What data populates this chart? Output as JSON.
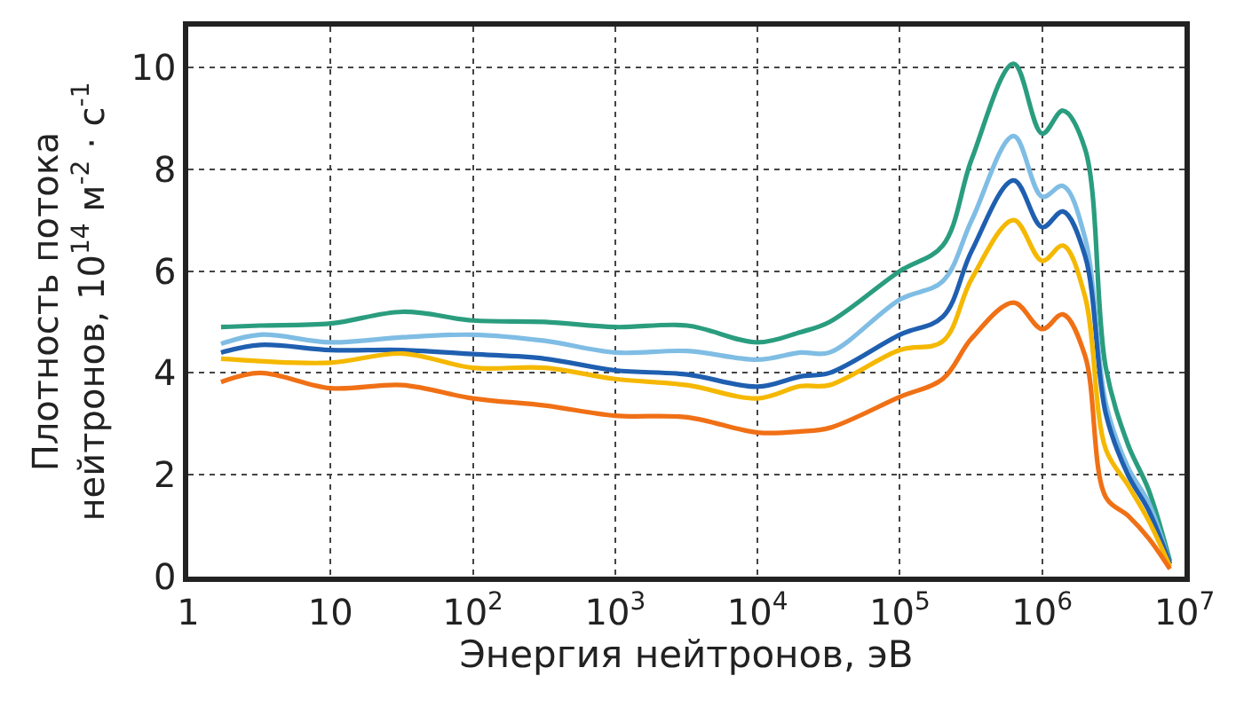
{
  "chart_data": {
    "type": "line",
    "xlabel": "Энергия нейтронов, эВ",
    "ylabel": "Плотность потока\nнейтронов, 10$^{14}$ м$^{-2}$ · с$^{-1}$",
    "x": [
      1.7,
      3.2,
      10,
      32,
      100,
      320,
      1000,
      3200,
      10000,
      20000,
      32000,
      100000,
      200000,
      320000,
      630000,
      1000000,
      1400000,
      2000000,
      2800000,
      4000000,
      5600000,
      7900000
    ],
    "series": [
      {
        "color": "#2a9d7f",
        "values": [
          4.9,
          4.93,
          4.97,
          5.2,
          5.03,
          5.0,
          4.9,
          4.93,
          4.6,
          4.8,
          5.0,
          6.0,
          6.5,
          8.2,
          10.07,
          8.7,
          9.15,
          8.4,
          4.1,
          2.6,
          1.7,
          0.3
        ]
      },
      {
        "color": "#7fbde4",
        "values": [
          4.57,
          4.75,
          4.6,
          4.7,
          4.75,
          4.63,
          4.4,
          4.43,
          4.26,
          4.4,
          4.4,
          5.44,
          5.8,
          7.0,
          8.65,
          7.46,
          7.67,
          6.65,
          3.4,
          2.15,
          1.45,
          0.25
        ]
      },
      {
        "color": "#1f5fb0",
        "values": [
          4.4,
          4.55,
          4.45,
          4.45,
          4.37,
          4.28,
          4.05,
          3.97,
          3.73,
          3.93,
          4.0,
          4.75,
          5.1,
          6.4,
          7.78,
          6.86,
          7.17,
          6.3,
          3.2,
          2.0,
          1.3,
          0.25
        ]
      },
      {
        "color": "#f5b800",
        "values": [
          4.28,
          4.23,
          4.2,
          4.38,
          4.1,
          4.1,
          3.88,
          3.76,
          3.5,
          3.74,
          3.76,
          4.45,
          4.62,
          5.85,
          7.0,
          6.2,
          6.5,
          5.5,
          2.5,
          1.8,
          1.1,
          0.2
        ]
      },
      {
        "color": "#f07015",
        "values": [
          3.82,
          4.0,
          3.7,
          3.76,
          3.5,
          3.36,
          3.16,
          3.13,
          2.83,
          2.85,
          2.92,
          3.53,
          3.88,
          4.68,
          5.38,
          4.86,
          5.15,
          4.34,
          1.56,
          1.2,
          0.75,
          0.15
        ]
      }
    ],
    "log": "x",
    "xlim": [
      1,
      10000000
    ],
    "xticks": [
      1,
      10,
      {
        "value": 100,
        "label": "10$^{2}$"
      },
      {
        "value": 1000,
        "label": "10$^{3}$"
      },
      {
        "value": 10000,
        "label": "10$^{4}$"
      },
      {
        "value": 100000,
        "label": "10$^{5}$"
      },
      {
        "value": 1000000,
        "label": "10$^{6}$"
      },
      {
        "value": 10000000,
        "label": "10$^{7}$"
      }
    ],
    "ylim": [
      0,
      10.8
    ],
    "yticks": [
      0,
      2,
      4,
      6,
      8,
      10
    ],
    "grid": true,
    "marker": "none",
    "line_style": "solid"
  }
}
